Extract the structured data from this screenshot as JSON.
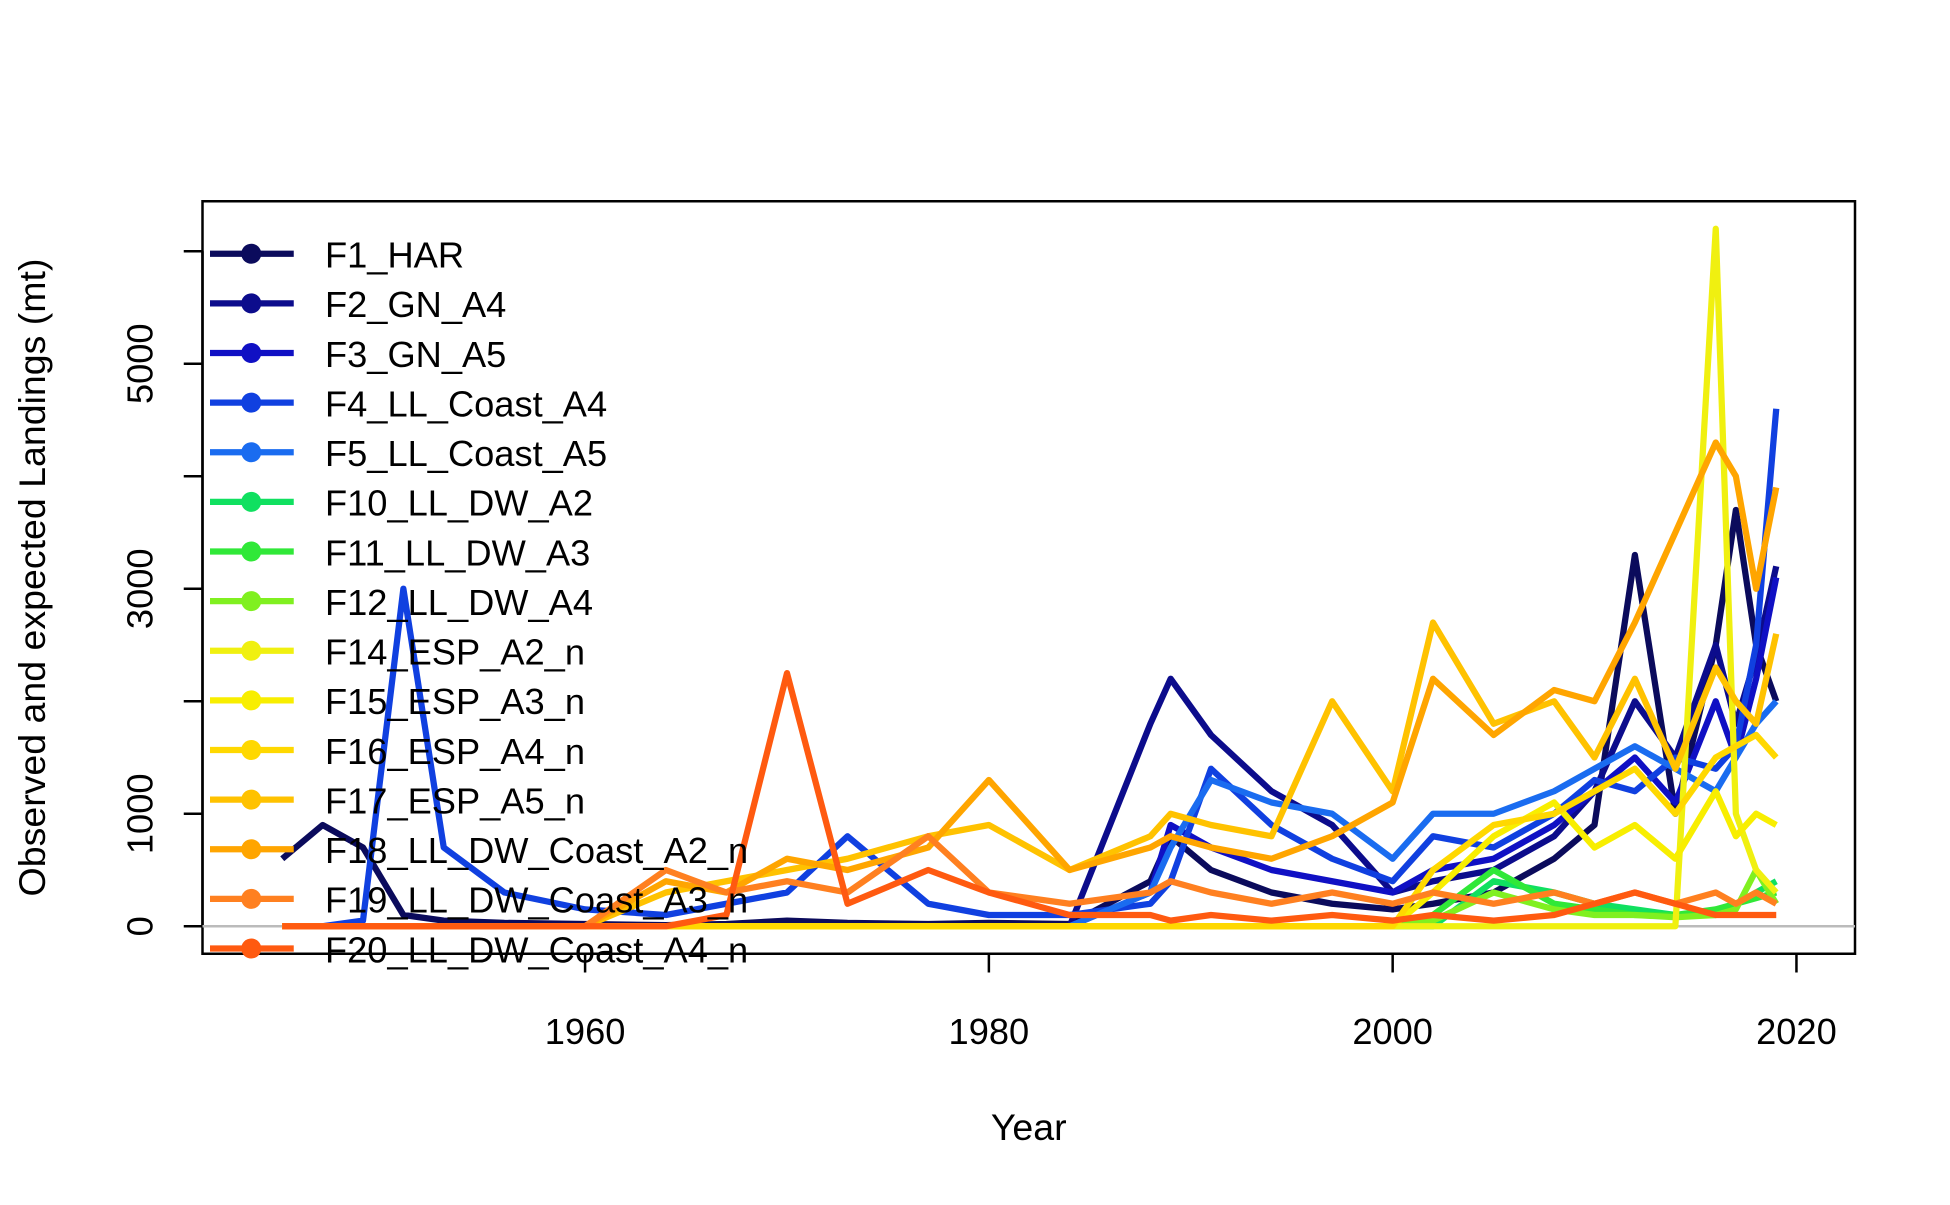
{
  "chart_data": {
    "type": "line",
    "x_label": "Year",
    "y_label": "Observed and expected Landings (mt)",
    "x": [
      1945,
      1947,
      1949,
      1951,
      1953,
      1956,
      1960,
      1964,
      1967,
      1970,
      1973,
      1977,
      1980,
      1984,
      1988,
      1989,
      1991,
      1994,
      1997,
      2000,
      2002,
      2005,
      2008,
      2010,
      2012,
      2014,
      2016,
      2017,
      2018,
      2019
    ],
    "xlim": [
      1941.05,
      2022.9
    ],
    "ylim": [
      -244,
      6444
    ],
    "xticks": [
      1960,
      1980,
      2000,
      2020
    ],
    "yticks": [
      0,
      1000,
      3000,
      5000
    ],
    "yminor_ticks": [
      2000,
      4000,
      6000
    ],
    "zero_line": true,
    "legend": "top-left",
    "series": [
      {
        "name": "F1_HAR",
        "color": "#0b0b5c",
        "values": [
          600,
          900,
          700,
          100,
          50,
          30,
          20,
          10,
          20,
          50,
          30,
          20,
          30,
          20,
          400,
          800,
          500,
          300,
          200,
          150,
          200,
          300,
          600,
          900,
          3300,
          1000,
          2500,
          3700,
          2500,
          2000
        ]
      },
      {
        "name": "F2_GN_A4",
        "color": "#0c0c8c",
        "values": [
          0,
          0,
          0,
          0,
          0,
          0,
          0,
          0,
          0,
          0,
          0,
          0,
          0,
          0,
          1800,
          2200,
          1700,
          1200,
          900,
          300,
          400,
          500,
          800,
          1200,
          2000,
          1500,
          2500,
          1800,
          2400,
          3200
        ]
      },
      {
        "name": "F3_GN_A5",
        "color": "#1010c4",
        "values": [
          0,
          0,
          0,
          0,
          0,
          0,
          0,
          0,
          0,
          0,
          0,
          0,
          0,
          0,
          300,
          900,
          700,
          500,
          400,
          300,
          500,
          600,
          900,
          1200,
          1500,
          1100,
          2000,
          1500,
          2200,
          3100
        ]
      },
      {
        "name": "F4_LL_Coast_A4",
        "color": "#1040e0",
        "values": [
          0,
          0,
          50,
          3000,
          700,
          300,
          150,
          100,
          200,
          300,
          800,
          200,
          100,
          100,
          200,
          400,
          1400,
          900,
          600,
          400,
          800,
          700,
          1000,
          1300,
          1200,
          1500,
          1400,
          1600,
          2500,
          4600
        ]
      },
      {
        "name": "F5_LL_Coast_A5",
        "color": "#1a6cf0",
        "values": [
          0,
          0,
          0,
          0,
          0,
          0,
          0,
          0,
          0,
          0,
          0,
          0,
          0,
          0,
          300,
          700,
          1300,
          1100,
          1000,
          600,
          1000,
          1000,
          1200,
          1400,
          1600,
          1400,
          1200,
          1500,
          1800,
          2000
        ]
      },
      {
        "name": "F10_LL_DW_A2",
        "color": "#10e060",
        "values": [
          0,
          0,
          0,
          0,
          0,
          0,
          0,
          0,
          0,
          0,
          0,
          0,
          0,
          0,
          0,
          0,
          0,
          0,
          0,
          0,
          0,
          400,
          300,
          200,
          150,
          100,
          100,
          200,
          300,
          400
        ]
      },
      {
        "name": "F11_LL_DW_A3",
        "color": "#30e838",
        "values": [
          0,
          0,
          0,
          0,
          0,
          0,
          0,
          0,
          0,
          0,
          0,
          0,
          0,
          0,
          0,
          0,
          0,
          0,
          0,
          0,
          100,
          500,
          200,
          150,
          100,
          100,
          150,
          200,
          250,
          300
        ]
      },
      {
        "name": "F12_LL_DW_A4",
        "color": "#80f020",
        "values": [
          0,
          0,
          0,
          0,
          0,
          0,
          0,
          0,
          0,
          0,
          0,
          0,
          0,
          0,
          0,
          0,
          0,
          0,
          0,
          0,
          50,
          300,
          150,
          100,
          100,
          80,
          100,
          150,
          500,
          200
        ]
      },
      {
        "name": "F14_ESP_A2_n",
        "color": "#f0f010",
        "values": [
          0,
          0,
          0,
          0,
          0,
          0,
          0,
          0,
          0,
          0,
          0,
          0,
          0,
          0,
          0,
          0,
          0,
          0,
          0,
          0,
          0,
          0,
          0,
          0,
          0,
          0,
          6200,
          1000,
          500,
          300
        ]
      },
      {
        "name": "F15_ESP_A3_n",
        "color": "#f8ee00",
        "values": [
          0,
          0,
          0,
          0,
          0,
          0,
          0,
          0,
          0,
          0,
          0,
          0,
          0,
          0,
          0,
          0,
          0,
          0,
          0,
          0,
          300,
          800,
          1100,
          700,
          900,
          600,
          1200,
          800,
          1000,
          900
        ]
      },
      {
        "name": "F16_ESP_A4_n",
        "color": "#ffd800",
        "values": [
          0,
          0,
          0,
          0,
          0,
          0,
          0,
          0,
          0,
          0,
          0,
          0,
          0,
          0,
          0,
          0,
          0,
          0,
          0,
          0,
          500,
          900,
          1000,
          1200,
          1400,
          1000,
          1500,
          1600,
          1700,
          1500
        ]
      },
      {
        "name": "F17_ESP_A5_n",
        "color": "#ffc200",
        "values": [
          0,
          0,
          0,
          0,
          0,
          0,
          0,
          300,
          400,
          500,
          600,
          800,
          900,
          500,
          800,
          1000,
          900,
          800,
          2000,
          1200,
          2700,
          1800,
          2000,
          1500,
          2200,
          1400,
          2300,
          2000,
          1800,
          2600
        ]
      },
      {
        "name": "F18_LL_DW_Coast_A2_n",
        "color": "#ffa500",
        "values": [
          0,
          0,
          0,
          0,
          0,
          0,
          0,
          400,
          300,
          600,
          500,
          700,
          1300,
          500,
          700,
          800,
          700,
          600,
          800,
          1100,
          2200,
          1700,
          2100,
          2000,
          2700,
          3500,
          4300,
          4000,
          3000,
          3900
        ]
      },
      {
        "name": "F19_LL_DW_Coast_A3_n",
        "color": "#ff8020",
        "values": [
          0,
          0,
          0,
          0,
          0,
          0,
          0,
          500,
          300,
          400,
          300,
          800,
          300,
          200,
          300,
          400,
          300,
          200,
          300,
          200,
          300,
          200,
          300,
          200,
          300,
          200,
          300,
          200,
          300,
          200
        ]
      },
      {
        "name": "F20_LL_DW_Coast_A4_n",
        "color": "#ff5a10",
        "values": [
          0,
          0,
          0,
          0,
          0,
          0,
          0,
          0,
          100,
          2250,
          200,
          500,
          300,
          100,
          100,
          50,
          100,
          50,
          100,
          50,
          100,
          50,
          100,
          200,
          300,
          200,
          100,
          100,
          100,
          100
        ]
      }
    ]
  }
}
